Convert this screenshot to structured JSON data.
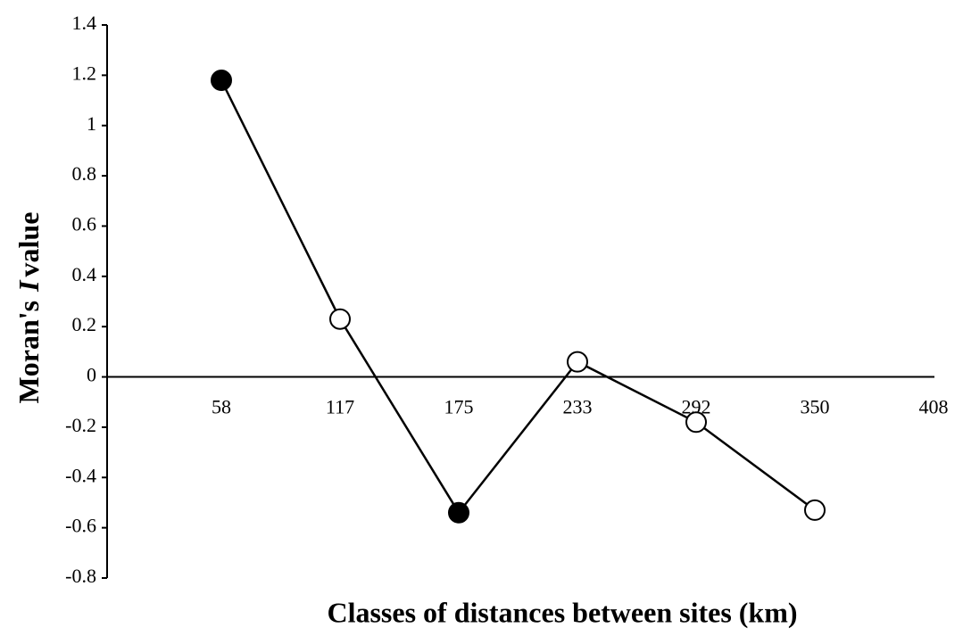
{
  "chart_data": {
    "type": "line",
    "xlabel": "Classes of distances between sites (km)",
    "ylabel_parts": [
      "Moran's",
      "I",
      "value"
    ],
    "categories": [
      "58",
      "117",
      "175",
      "233",
      "292",
      "350",
      "408"
    ],
    "values": [
      1.18,
      0.23,
      -0.54,
      0.06,
      -0.18,
      -0.53,
      null
    ],
    "marker_filled": [
      true,
      false,
      true,
      false,
      false,
      false,
      false
    ],
    "color": "#000000",
    "ylim": [
      -0.8,
      1.4
    ],
    "yticks": [
      1.4,
      1.2,
      1,
      0.8,
      0.6,
      0.4,
      0.2,
      0,
      -0.2,
      -0.4,
      -0.6,
      -0.8
    ]
  }
}
